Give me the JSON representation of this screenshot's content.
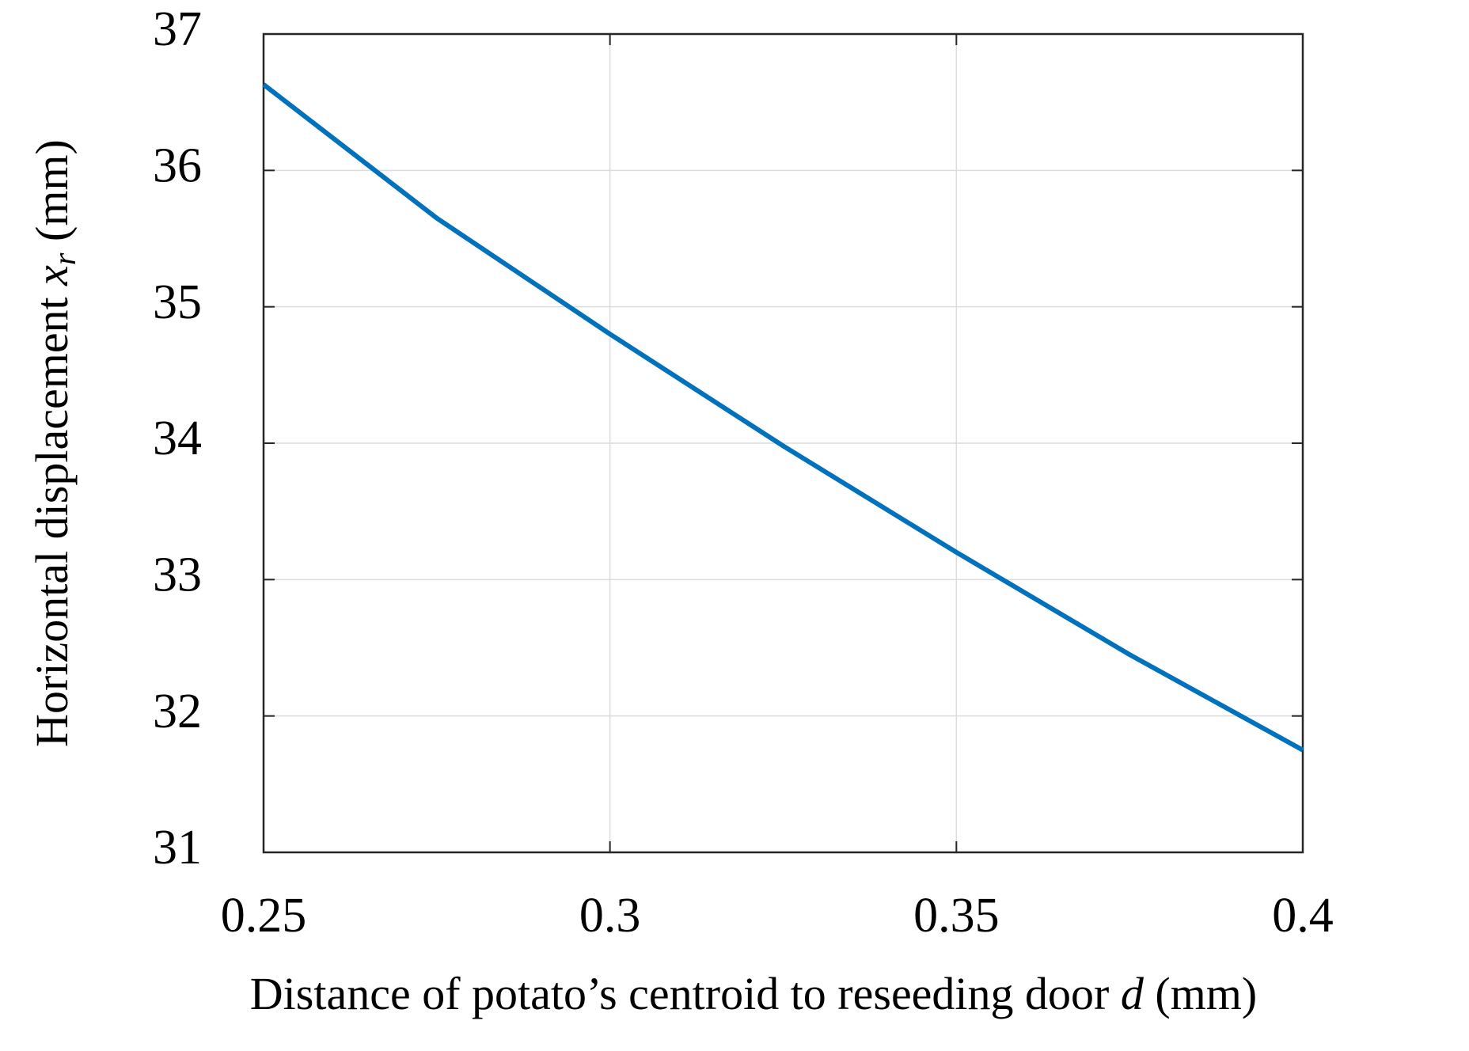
{
  "chart_data": {
    "type": "line",
    "xlabel": [
      "Distance of potato’s centroid to reseeding door ",
      "d",
      " (mm)"
    ],
    "ylabel": [
      "Horizontal displacement ",
      "x",
      "r",
      " (mm)"
    ],
    "x": [
      0.25,
      0.275,
      0.3,
      0.325,
      0.35,
      0.375,
      0.4
    ],
    "series": [
      {
        "color": "#0072bd",
        "values": [
          36.63,
          35.65,
          34.8,
          33.98,
          33.2,
          32.45,
          31.75
        ]
      }
    ],
    "xlim": [
      0.25,
      0.4
    ],
    "xticks": [
      0.25,
      0.3,
      0.35,
      0.4
    ],
    "ylim": [
      31,
      37
    ],
    "yticks": [
      31,
      32,
      33,
      34,
      35,
      36,
      37
    ],
    "grid": true
  }
}
